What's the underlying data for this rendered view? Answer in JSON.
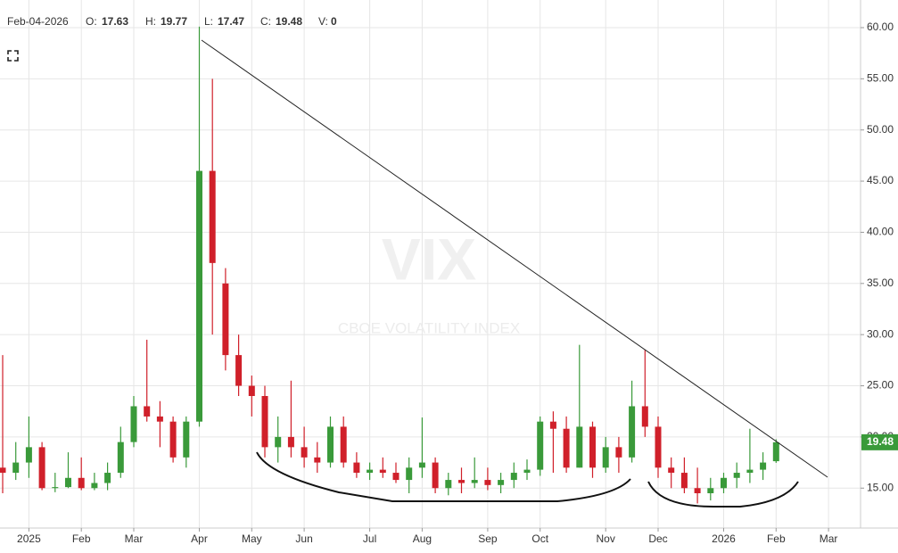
{
  "chart_data": {
    "type": "candlestick",
    "header": {
      "date": "Feb-04-2026",
      "labels": [
        "O:",
        "H:",
        "L:",
        "C:",
        "V:"
      ],
      "volume": 0
    },
    "watermark": "VIX",
    "watermark_subtitle": "CBOE VOLATILITY INDEX",
    "categories": [
      null,
      null,
      "2025",
      null,
      null,
      null,
      "Feb",
      null,
      null,
      null,
      "Mar",
      null,
      null,
      null,
      null,
      "Apr",
      null,
      null,
      null,
      "May",
      null,
      null,
      null,
      "Jun",
      null,
      null,
      null,
      null,
      "Jul",
      null,
      null,
      null,
      "Aug",
      null,
      null,
      null,
      null,
      "Sep",
      null,
      null,
      null,
      "Oct",
      null,
      null,
      null,
      null,
      "Nov",
      null,
      null,
      null,
      "Dec",
      null,
      null,
      null,
      null,
      "2026",
      null,
      null,
      null,
      "Feb",
      null,
      null,
      null,
      "Mar"
    ],
    "series": [
      {
        "up_color": "#3a9a3a",
        "down_color": "#d0202a",
        "open": [
          17,
          16.5,
          17.5,
          19,
          15,
          15.1,
          16,
          15,
          15.5,
          16.5,
          19.5,
          23,
          22,
          21.5,
          18,
          21.5,
          46,
          35,
          28,
          25,
          24,
          19,
          20,
          19,
          18,
          17.5,
          21,
          17.5,
          16.5,
          16.8,
          16.5,
          15.8,
          17,
          17.5,
          15,
          15.8,
          15.5,
          15.8,
          15.3,
          15.8,
          16.5,
          16.8,
          21.5,
          20.8,
          17,
          21,
          17,
          19,
          18,
          23,
          21,
          17,
          16.5,
          15,
          14.5,
          15,
          16,
          16.5,
          16.8,
          17.63,
          null,
          null,
          null,
          null
        ],
        "high": [
          28,
          19.5,
          22,
          19.5,
          16.5,
          18.5,
          18,
          16.5,
          17.5,
          21,
          24,
          29.5,
          23.5,
          22,
          22,
          60.1,
          55,
          36.5,
          30,
          26,
          25,
          22,
          25.5,
          21,
          19.5,
          22,
          22,
          18.5,
          17.5,
          18,
          17.5,
          18,
          21.9,
          18,
          16.5,
          17,
          18,
          17,
          16.5,
          17.5,
          17.8,
          22,
          22.5,
          22,
          29,
          21.5,
          20,
          20,
          25.5,
          28.5,
          22,
          18,
          18,
          17,
          16,
          16.5,
          17.5,
          20.8,
          18.5,
          19.77,
          null,
          null,
          null,
          null
        ],
        "low": [
          14.5,
          15.8,
          16,
          14.8,
          14.6,
          15,
          14.8,
          14.8,
          14.8,
          16,
          19,
          21.5,
          19,
          17.5,
          17,
          21,
          30,
          26.5,
          24,
          22,
          18,
          17.5,
          18,
          17,
          16.5,
          17,
          17,
          16,
          15.8,
          16,
          15.5,
          14.5,
          16,
          14.5,
          14.3,
          14.5,
          15,
          14.8,
          14.5,
          15,
          15.8,
          16.2,
          16.5,
          16.5,
          17,
          16,
          16.5,
          16.5,
          17.5,
          20,
          16,
          15,
          14.5,
          13.5,
          13.8,
          14.5,
          15,
          15.5,
          15.8,
          17.47,
          null,
          null,
          null,
          null
        ],
        "close": [
          16.5,
          17.5,
          19,
          15,
          15.1,
          16,
          15,
          15.5,
          16.5,
          19.5,
          23,
          22,
          21.5,
          18,
          21.5,
          46,
          37,
          28,
          25,
          24,
          19,
          20,
          19,
          18,
          17.5,
          21,
          17.5,
          16.5,
          16.8,
          16.5,
          15.8,
          17,
          17.5,
          15,
          15.8,
          15.5,
          15.8,
          15.3,
          15.8,
          16.5,
          16.8,
          21.5,
          20.8,
          17,
          21,
          17,
          19,
          18,
          23,
          21,
          17,
          16.5,
          15,
          14.5,
          15,
          16,
          16.5,
          16.8,
          17.5,
          19.48,
          null,
          null,
          null,
          null
        ]
      }
    ],
    "ylim": [
      11.1,
      62.7
    ],
    "yticks": [
      {
        "value": 15,
        "label": "15.00"
      },
      {
        "value": 20,
        "label": "20.00"
      },
      {
        "value": 25,
        "label": "25.00"
      },
      {
        "value": 30,
        "label": "30.00"
      },
      {
        "value": 35,
        "label": "35.00"
      },
      {
        "value": 40,
        "label": "40.00"
      },
      {
        "value": 45,
        "label": "45.00"
      },
      {
        "value": 50,
        "label": "50.00"
      },
      {
        "value": 55,
        "label": "55.00"
      },
      {
        "value": 60,
        "label": "60.00"
      }
    ],
    "grid": true,
    "last_color": "#3a9a3a"
  }
}
